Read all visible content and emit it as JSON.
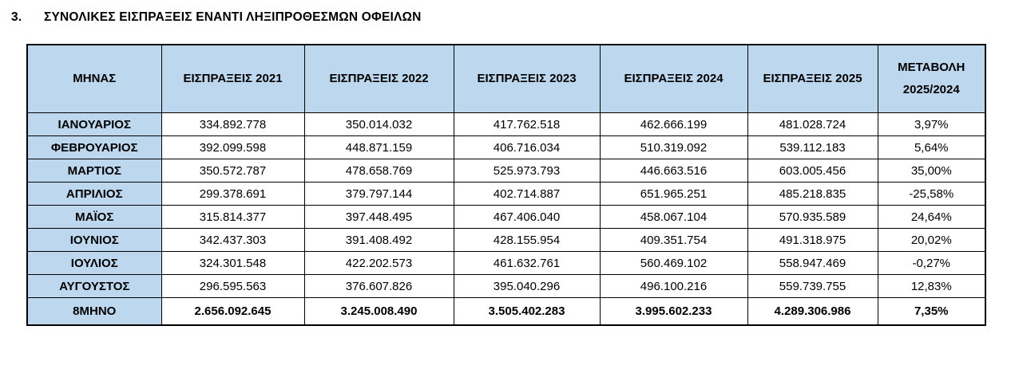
{
  "title": {
    "number": "3.",
    "text": "ΣΥΝΟΛΙΚΕΣ ΕΙΣΠΡΑΞΕΙΣ ΕΝΑΝΤΙ ΛΗΞΙΠΡΟΘΕΣΜΩΝ ΟΦΕΙΛΩΝ"
  },
  "colors": {
    "header_bg": "#BDD7EE",
    "border": "#000000",
    "text": "#000000",
    "background": "#FFFFFF"
  },
  "table": {
    "columns": [
      "ΜΗΝΑΣ",
      "ΕΙΣΠΡΑΞΕΙΣ 2021",
      "ΕΙΣΠΡΑΞΕΙΣ 2022",
      "ΕΙΣΠΡΑΞΕΙΣ 2023",
      "ΕΙΣΠΡΑΞΕΙΣ 2024",
      "ΕΙΣΠΡΑΞΕΙΣ 2025",
      "ΜΕΤΑΒΟΛΗ 2025/2024"
    ],
    "rows": [
      {
        "month": "ΙΑΝΟΥΑΡΙΟΣ",
        "values": [
          "334.892.778",
          "350.014.032",
          "417.762.518",
          "462.666.199",
          "481.028.724"
        ],
        "change": "3,97%"
      },
      {
        "month": "ΦΕΒΡΟΥΑΡΙΟΣ",
        "values": [
          "392.099.598",
          "448.871.159",
          "406.716.034",
          "510.319.092",
          "539.112.183"
        ],
        "change": "5,64%"
      },
      {
        "month": "ΜΑΡΤΙΟΣ",
        "values": [
          "350.572.787",
          "478.658.769",
          "525.973.793",
          "446.663.516",
          "603.005.456"
        ],
        "change": "35,00%"
      },
      {
        "month": "ΑΠΡΙΛΙΟΣ",
        "values": [
          "299.378.691",
          "379.797.144",
          "402.714.887",
          "651.965.251",
          "485.218.835"
        ],
        "change": "-25,58%"
      },
      {
        "month": "ΜΑΪΟΣ",
        "values": [
          "315.814.377",
          "397.448.495",
          "467.406.040",
          "458.067.104",
          "570.935.589"
        ],
        "change": "24,64%"
      },
      {
        "month": "ΙΟΥΝΙΟΣ",
        "values": [
          "342.437.303",
          "391.408.492",
          "428.155.954",
          "409.351.754",
          "491.318.975"
        ],
        "change": "20,02%"
      },
      {
        "month": "ΙΟΥΛΙΟΣ",
        "values": [
          "324.301.548",
          "422.202.573",
          "461.632.761",
          "560.469.102",
          "558.947.469"
        ],
        "change": "-0,27%"
      },
      {
        "month": "ΑΥΓΟΥΣΤΟΣ",
        "values": [
          "296.595.563",
          "376.607.826",
          "395.040.296",
          "496.100.216",
          "559.739.755"
        ],
        "change": "12,83%"
      }
    ],
    "total_row": {
      "label": "8ΜΗΝΟ",
      "values": [
        "2.656.092.645",
        "3.245.008.490",
        "3.505.402.283",
        "3.995.602.233",
        "4.289.306.986"
      ],
      "change": "7,35%"
    }
  }
}
